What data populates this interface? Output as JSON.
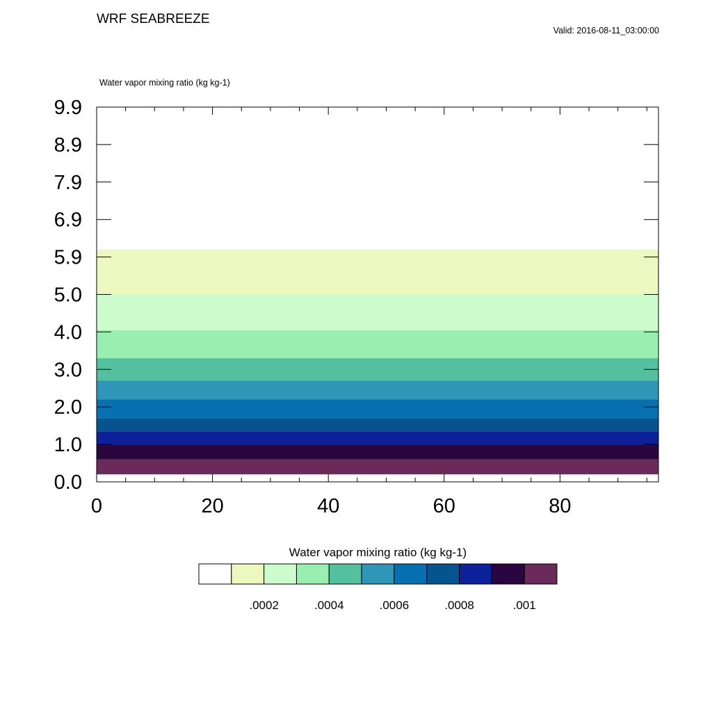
{
  "header": {
    "title": "WRF SEABREEZE",
    "valid": "Valid: 2016-08-11_03:00:00",
    "field_label": "Water vapor mixing ratio   (kg kg-1)"
  },
  "colorbar": {
    "title": "Water vapor mixing ratio  (kg kg-1)",
    "colors": [
      "#ffffff",
      "#edf8c0",
      "#ccfccc",
      "#9aeeb0",
      "#55c0a0",
      "#3096b8",
      "#0870b0",
      "#055490",
      "#0c209a",
      "#2a0640",
      "#6a2a5a"
    ],
    "labels": [
      {
        "after_box": 1,
        "text": ".0002"
      },
      {
        "after_box": 3,
        "text": ".0004"
      },
      {
        "after_box": 5,
        "text": ".0006"
      },
      {
        "after_box": 7,
        "text": ".0008"
      },
      {
        "after_box": 9,
        "text": ".001"
      }
    ]
  },
  "chart_data": {
    "type": "heatmap",
    "title": "Water vapor mixing ratio   (kg kg-1)",
    "xlabel": "",
    "ylabel": "",
    "xlim": [
      0,
      97
    ],
    "x_ticks": [
      0,
      20,
      40,
      60,
      80
    ],
    "y_ticks": [
      {
        "pos": 0,
        "label": "0.0"
      },
      {
        "pos": 1,
        "label": "1.0"
      },
      {
        "pos": 2,
        "label": "2.0"
      },
      {
        "pos": 3,
        "label": "3.0"
      },
      {
        "pos": 4,
        "label": "4.0"
      },
      {
        "pos": 5,
        "label": "5.0"
      },
      {
        "pos": 6,
        "label": "5.9"
      },
      {
        "pos": 7,
        "label": "6.9"
      },
      {
        "pos": 8,
        "label": "7.9"
      },
      {
        "pos": 9,
        "label": "8.9"
      },
      {
        "pos": 10,
        "label": "9.9"
      }
    ],
    "ylim": [
      0,
      10
    ],
    "bands": [
      {
        "y0": 0.2,
        "y1": 0.6,
        "color": "#6a2a5a",
        "range": "> .001"
      },
      {
        "y0": 0.6,
        "y1": 1.0,
        "color": "#2a0640",
        "range": ".0009 - .001"
      },
      {
        "y0": 1.0,
        "y1": 1.35,
        "color": "#0c209a",
        "range": ".0008 - .0009"
      },
      {
        "y0": 1.35,
        "y1": 1.7,
        "color": "#055490",
        "range": ".0007 - .0008"
      },
      {
        "y0": 1.7,
        "y1": 2.2,
        "color": "#0870b0",
        "range": ".0006 - .0007"
      },
      {
        "y0": 2.2,
        "y1": 2.7,
        "color": "#3096b8",
        "range": ".0005 - .0006"
      },
      {
        "y0": 2.7,
        "y1": 3.3,
        "color": "#55c0a0",
        "range": ".0004 - .0005"
      },
      {
        "y0": 3.3,
        "y1": 4.05,
        "color": "#9aeeb0",
        "range": ".0003 - .0004"
      },
      {
        "y0": 4.05,
        "y1": 5.0,
        "color": "#ccfccc",
        "range": ".0002 - .0003"
      },
      {
        "y0": 5.0,
        "y1": 6.2,
        "color": "#edf8c0",
        "range": ".0001 - .0002"
      }
    ]
  }
}
